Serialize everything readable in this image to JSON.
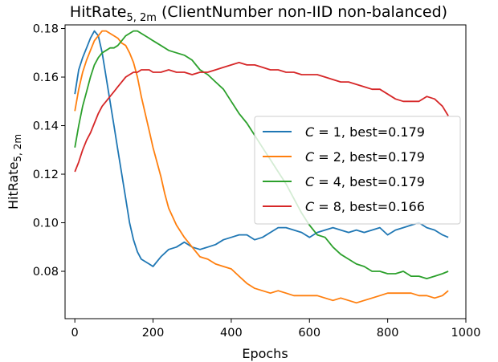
{
  "chart_data": {
    "type": "line",
    "title_main": "HitRate",
    "title_sub": "5, 2m",
    "title_rest": " (ClientNumber non-IID non-balanced)",
    "xlabel": "Epochs",
    "ylabel_main": "HitRate",
    "ylabel_sub": "5, 2m",
    "xlim": [
      -25,
      1000
    ],
    "ylim": [
      0.0605,
      0.1815
    ],
    "xticks": [
      0,
      200,
      400,
      600,
      800,
      1000
    ],
    "xtick_labels": [
      "0",
      "200",
      "400",
      "600",
      "800",
      "1000"
    ],
    "yticks": [
      0.08,
      0.1,
      0.12,
      0.14,
      0.16,
      0.18
    ],
    "ytick_labels": [
      "0.08",
      "0.10",
      "0.12",
      "0.14",
      "0.16",
      "0.18"
    ],
    "grid": false,
    "legend_position": "center-right",
    "series": [
      {
        "name": "C = 1, best=0.179",
        "legend_italic": "C",
        "legend_rest": " = 1, best=0.179",
        "color": "#1f77b4",
        "x": [
          0,
          10,
          20,
          30,
          40,
          50,
          60,
          70,
          80,
          90,
          100,
          110,
          120,
          130,
          140,
          150,
          160,
          170,
          180,
          190,
          200,
          210,
          220,
          240,
          260,
          280,
          300,
          320,
          340,
          360,
          380,
          400,
          420,
          440,
          460,
          480,
          500,
          520,
          540,
          560,
          580,
          600,
          620,
          640,
          660,
          680,
          700,
          720,
          740,
          760,
          780,
          800,
          820,
          840,
          860,
          880,
          900,
          920,
          940,
          955
        ],
        "y": [
          0.153,
          0.163,
          0.168,
          0.172,
          0.176,
          0.179,
          0.177,
          0.17,
          0.16,
          0.15,
          0.14,
          0.13,
          0.12,
          0.11,
          0.1,
          0.093,
          0.088,
          0.085,
          0.084,
          0.083,
          0.082,
          0.084,
          0.086,
          0.089,
          0.09,
          0.092,
          0.09,
          0.089,
          0.09,
          0.091,
          0.093,
          0.094,
          0.095,
          0.095,
          0.093,
          0.094,
          0.096,
          0.098,
          0.098,
          0.097,
          0.096,
          0.094,
          0.096,
          0.097,
          0.098,
          0.097,
          0.096,
          0.097,
          0.096,
          0.097,
          0.098,
          0.095,
          0.097,
          0.098,
          0.099,
          0.1,
          0.098,
          0.097,
          0.095,
          0.094
        ]
      },
      {
        "name": "C = 2, best=0.179",
        "legend_italic": "C",
        "legend_rest": " = 2, best=0.179",
        "color": "#ff7f0e",
        "x": [
          0,
          10,
          20,
          30,
          40,
          50,
          60,
          70,
          80,
          90,
          100,
          110,
          120,
          130,
          140,
          150,
          160,
          170,
          180,
          190,
          200,
          210,
          220,
          230,
          240,
          260,
          280,
          300,
          320,
          340,
          360,
          380,
          400,
          420,
          440,
          460,
          480,
          500,
          520,
          540,
          560,
          580,
          600,
          620,
          640,
          660,
          680,
          700,
          720,
          740,
          760,
          780,
          800,
          820,
          840,
          860,
          880,
          900,
          920,
          940,
          955
        ],
        "y": [
          0.146,
          0.155,
          0.162,
          0.167,
          0.171,
          0.175,
          0.177,
          0.179,
          0.179,
          0.178,
          0.177,
          0.176,
          0.174,
          0.173,
          0.17,
          0.166,
          0.16,
          0.152,
          0.145,
          0.138,
          0.131,
          0.125,
          0.119,
          0.112,
          0.106,
          0.099,
          0.094,
          0.09,
          0.086,
          0.085,
          0.083,
          0.082,
          0.081,
          0.078,
          0.075,
          0.073,
          0.072,
          0.071,
          0.072,
          0.071,
          0.07,
          0.07,
          0.07,
          0.07,
          0.069,
          0.068,
          0.069,
          0.068,
          0.067,
          0.068,
          0.069,
          0.07,
          0.071,
          0.071,
          0.071,
          0.071,
          0.07,
          0.07,
          0.069,
          0.07,
          0.072
        ]
      },
      {
        "name": "C = 4, best=0.179",
        "legend_italic": "C",
        "legend_rest": " = 4, best=0.179",
        "color": "#2ca02c",
        "x": [
          0,
          10,
          20,
          30,
          40,
          50,
          60,
          70,
          80,
          90,
          100,
          110,
          120,
          130,
          140,
          150,
          160,
          170,
          180,
          190,
          200,
          220,
          240,
          260,
          280,
          300,
          320,
          340,
          360,
          380,
          400,
          420,
          440,
          460,
          480,
          500,
          520,
          540,
          560,
          580,
          600,
          620,
          640,
          660,
          680,
          700,
          720,
          740,
          760,
          780,
          800,
          820,
          840,
          860,
          880,
          900,
          920,
          940,
          955
        ],
        "y": [
          0.131,
          0.14,
          0.148,
          0.154,
          0.16,
          0.165,
          0.168,
          0.17,
          0.171,
          0.172,
          0.172,
          0.173,
          0.175,
          0.177,
          0.178,
          0.179,
          0.179,
          0.178,
          0.177,
          0.176,
          0.175,
          0.173,
          0.171,
          0.17,
          0.169,
          0.167,
          0.163,
          0.161,
          0.158,
          0.155,
          0.15,
          0.145,
          0.141,
          0.136,
          0.131,
          0.126,
          0.121,
          0.116,
          0.11,
          0.104,
          0.099,
          0.095,
          0.094,
          0.09,
          0.087,
          0.085,
          0.083,
          0.082,
          0.08,
          0.08,
          0.079,
          0.079,
          0.08,
          0.078,
          0.078,
          0.077,
          0.078,
          0.079,
          0.08
        ]
      },
      {
        "name": "C = 8, best=0.166",
        "legend_italic": "C",
        "legend_rest": " = 8, best=0.166",
        "color": "#d62728",
        "x": [
          0,
          10,
          20,
          30,
          40,
          50,
          60,
          70,
          80,
          90,
          100,
          110,
          120,
          130,
          140,
          150,
          160,
          170,
          180,
          190,
          200,
          220,
          240,
          260,
          280,
          300,
          320,
          340,
          360,
          380,
          400,
          420,
          440,
          460,
          480,
          500,
          520,
          540,
          560,
          580,
          600,
          620,
          640,
          660,
          680,
          700,
          720,
          740,
          760,
          780,
          800,
          820,
          840,
          860,
          880,
          900,
          920,
          940,
          955
        ],
        "y": [
          0.121,
          0.125,
          0.13,
          0.134,
          0.137,
          0.141,
          0.145,
          0.148,
          0.15,
          0.152,
          0.154,
          0.156,
          0.158,
          0.16,
          0.161,
          0.162,
          0.162,
          0.163,
          0.163,
          0.163,
          0.162,
          0.162,
          0.163,
          0.162,
          0.162,
          0.161,
          0.162,
          0.162,
          0.163,
          0.164,
          0.165,
          0.166,
          0.165,
          0.165,
          0.164,
          0.163,
          0.163,
          0.162,
          0.162,
          0.161,
          0.161,
          0.161,
          0.16,
          0.159,
          0.158,
          0.158,
          0.157,
          0.156,
          0.155,
          0.155,
          0.153,
          0.151,
          0.15,
          0.15,
          0.15,
          0.152,
          0.151,
          0.148,
          0.144
        ]
      }
    ]
  }
}
